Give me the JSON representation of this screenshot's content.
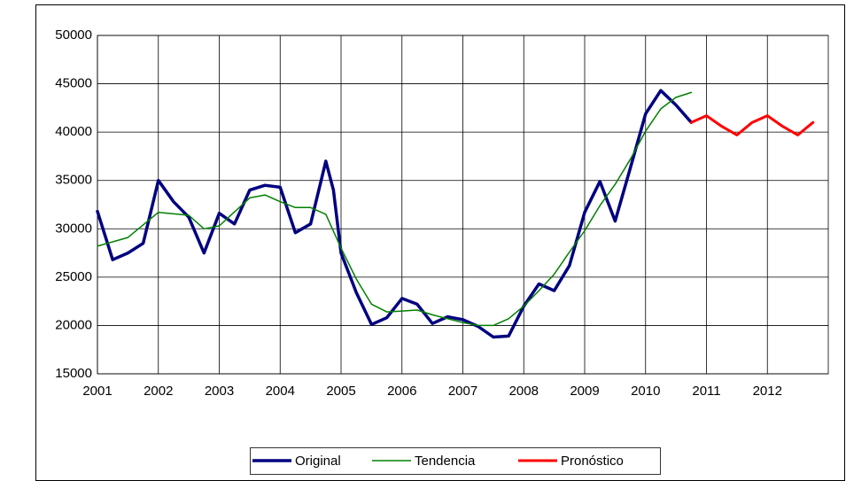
{
  "chart_data": {
    "type": "line",
    "xlim": [
      2001,
      2013
    ],
    "xticks": [
      2001,
      2002,
      2003,
      2004,
      2005,
      2006,
      2007,
      2008,
      2009,
      2010,
      2011,
      2012
    ],
    "ylim": [
      15000,
      50000
    ],
    "yticks": [
      15000,
      20000,
      25000,
      30000,
      35000,
      40000,
      45000,
      50000
    ],
    "grid": true,
    "legend": "bottom",
    "series": [
      {
        "name": "Original",
        "color": "#000080",
        "x": [
          2001,
          2001.25,
          2001.5,
          2001.75,
          2002,
          2002.25,
          2002.5,
          2002.75,
          2003,
          2003.25,
          2003.5,
          2003.75,
          2004,
          2004.25,
          2004.5,
          2004.75,
          2004.875,
          2005,
          2005.25,
          2005.5,
          2005.75,
          2006,
          2006.25,
          2006.5,
          2006.75,
          2007,
          2007.25,
          2007.5,
          2007.75,
          2008,
          2008.25,
          2008.5,
          2008.75,
          2009,
          2009.25,
          2009.5,
          2009.75,
          2010,
          2010.25,
          2010.5,
          2010.75
        ],
        "values": [
          31800,
          26800,
          27500,
          28500,
          35000,
          32800,
          31200,
          27500,
          31600,
          30500,
          34000,
          34500,
          34300,
          29600,
          30500,
          37000,
          34000,
          27500,
          23400,
          20100,
          20800,
          22800,
          22200,
          20200,
          20900,
          20600,
          19900,
          18800,
          18900,
          22000,
          24300,
          23600,
          26200,
          31700,
          34900,
          30800,
          36300,
          41900,
          44300,
          42800,
          41000
        ]
      },
      {
        "name": "Tendencia",
        "color": "#008000",
        "x": [
          2001,
          2001.5,
          2002,
          2002.5,
          2002.75,
          2003,
          2003.5,
          2003.75,
          2004,
          2004.25,
          2004.5,
          2004.75,
          2005,
          2005.25,
          2005.5,
          2005.75,
          2006,
          2006.25,
          2006.5,
          2006.75,
          2007,
          2007.25,
          2007.5,
          2007.75,
          2008,
          2008.25,
          2008.5,
          2008.75,
          2009,
          2009.25,
          2009.5,
          2009.75,
          2010,
          2010.25,
          2010.5,
          2010.75
        ],
        "values": [
          28200,
          29100,
          31700,
          31400,
          30000,
          30300,
          33200,
          33500,
          32800,
          32200,
          32200,
          31500,
          28000,
          24800,
          22200,
          21400,
          21500,
          21600,
          21100,
          20700,
          20300,
          20000,
          20000,
          20700,
          22000,
          23600,
          25300,
          27600,
          29800,
          32400,
          34600,
          37200,
          40100,
          42400,
          43600,
          44100
        ]
      },
      {
        "name": "Pronóstico",
        "color": "#ff0000",
        "x": [
          2010.75,
          2011,
          2011.25,
          2011.5,
          2011.75,
          2012,
          2012.25,
          2012.5,
          2012.75
        ],
        "values": [
          41000,
          41700,
          40600,
          39700,
          41000,
          41700,
          40600,
          39700,
          41000
        ]
      }
    ]
  }
}
